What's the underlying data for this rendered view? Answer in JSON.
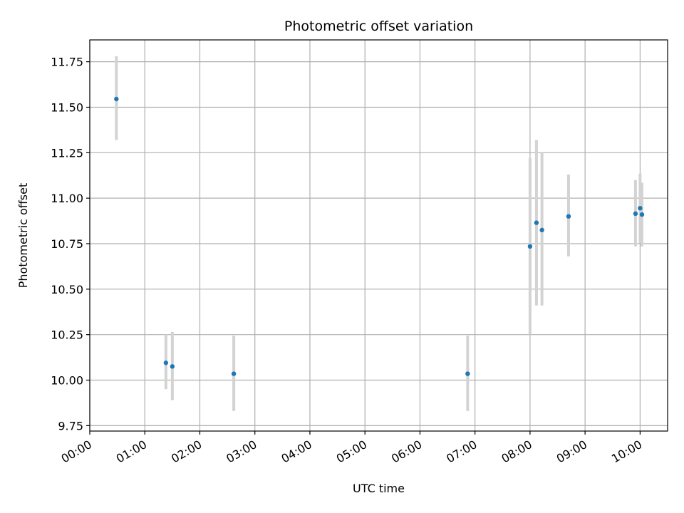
{
  "chart_data": {
    "type": "scatter",
    "title": "Photometric offset variation",
    "xlabel": "UTC time",
    "ylabel": "Photometric offset",
    "x_ticks": [
      "00:00",
      "01:00",
      "02:00",
      "03:00",
      "04:00",
      "05:00",
      "06:00",
      "07:00",
      "08:00",
      "09:00",
      "10:00"
    ],
    "y_ticks": [
      "9.75",
      "10.00",
      "10.25",
      "10.50",
      "10.75",
      "11.00",
      "11.25",
      "11.50",
      "11.75"
    ],
    "xlim": [
      "00:00",
      "10:30"
    ],
    "ylim": [
      9.72,
      11.87
    ],
    "grid": true,
    "marker_color": "#1f77b4",
    "errorbar_color": "#d3d3d3",
    "points": [
      {
        "x": "00:29",
        "y": 11.545,
        "low": 11.32,
        "high": 11.78
      },
      {
        "x": "01:23",
        "y": 10.095,
        "low": 9.95,
        "high": 10.25
      },
      {
        "x": "01:30",
        "y": 10.075,
        "low": 9.89,
        "high": 10.265
      },
      {
        "x": "02:37",
        "y": 10.035,
        "low": 9.83,
        "high": 10.245
      },
      {
        "x": "06:52",
        "y": 10.035,
        "low": 9.83,
        "high": 10.245
      },
      {
        "x": "08:00",
        "y": 10.735,
        "low": 10.25,
        "high": 11.22
      },
      {
        "x": "08:07",
        "y": 10.865,
        "low": 10.41,
        "high": 11.32
      },
      {
        "x": "08:13",
        "y": 10.825,
        "low": 10.41,
        "high": 11.25
      },
      {
        "x": "08:42",
        "y": 10.9,
        "low": 10.68,
        "high": 11.13
      },
      {
        "x": "09:55",
        "y": 10.915,
        "low": 10.735,
        "high": 11.1
      },
      {
        "x": "10:00",
        "y": 10.945,
        "low": 10.755,
        "high": 11.135
      },
      {
        "x": "10:02",
        "y": 10.91,
        "low": 10.735,
        "high": 11.085
      }
    ]
  }
}
